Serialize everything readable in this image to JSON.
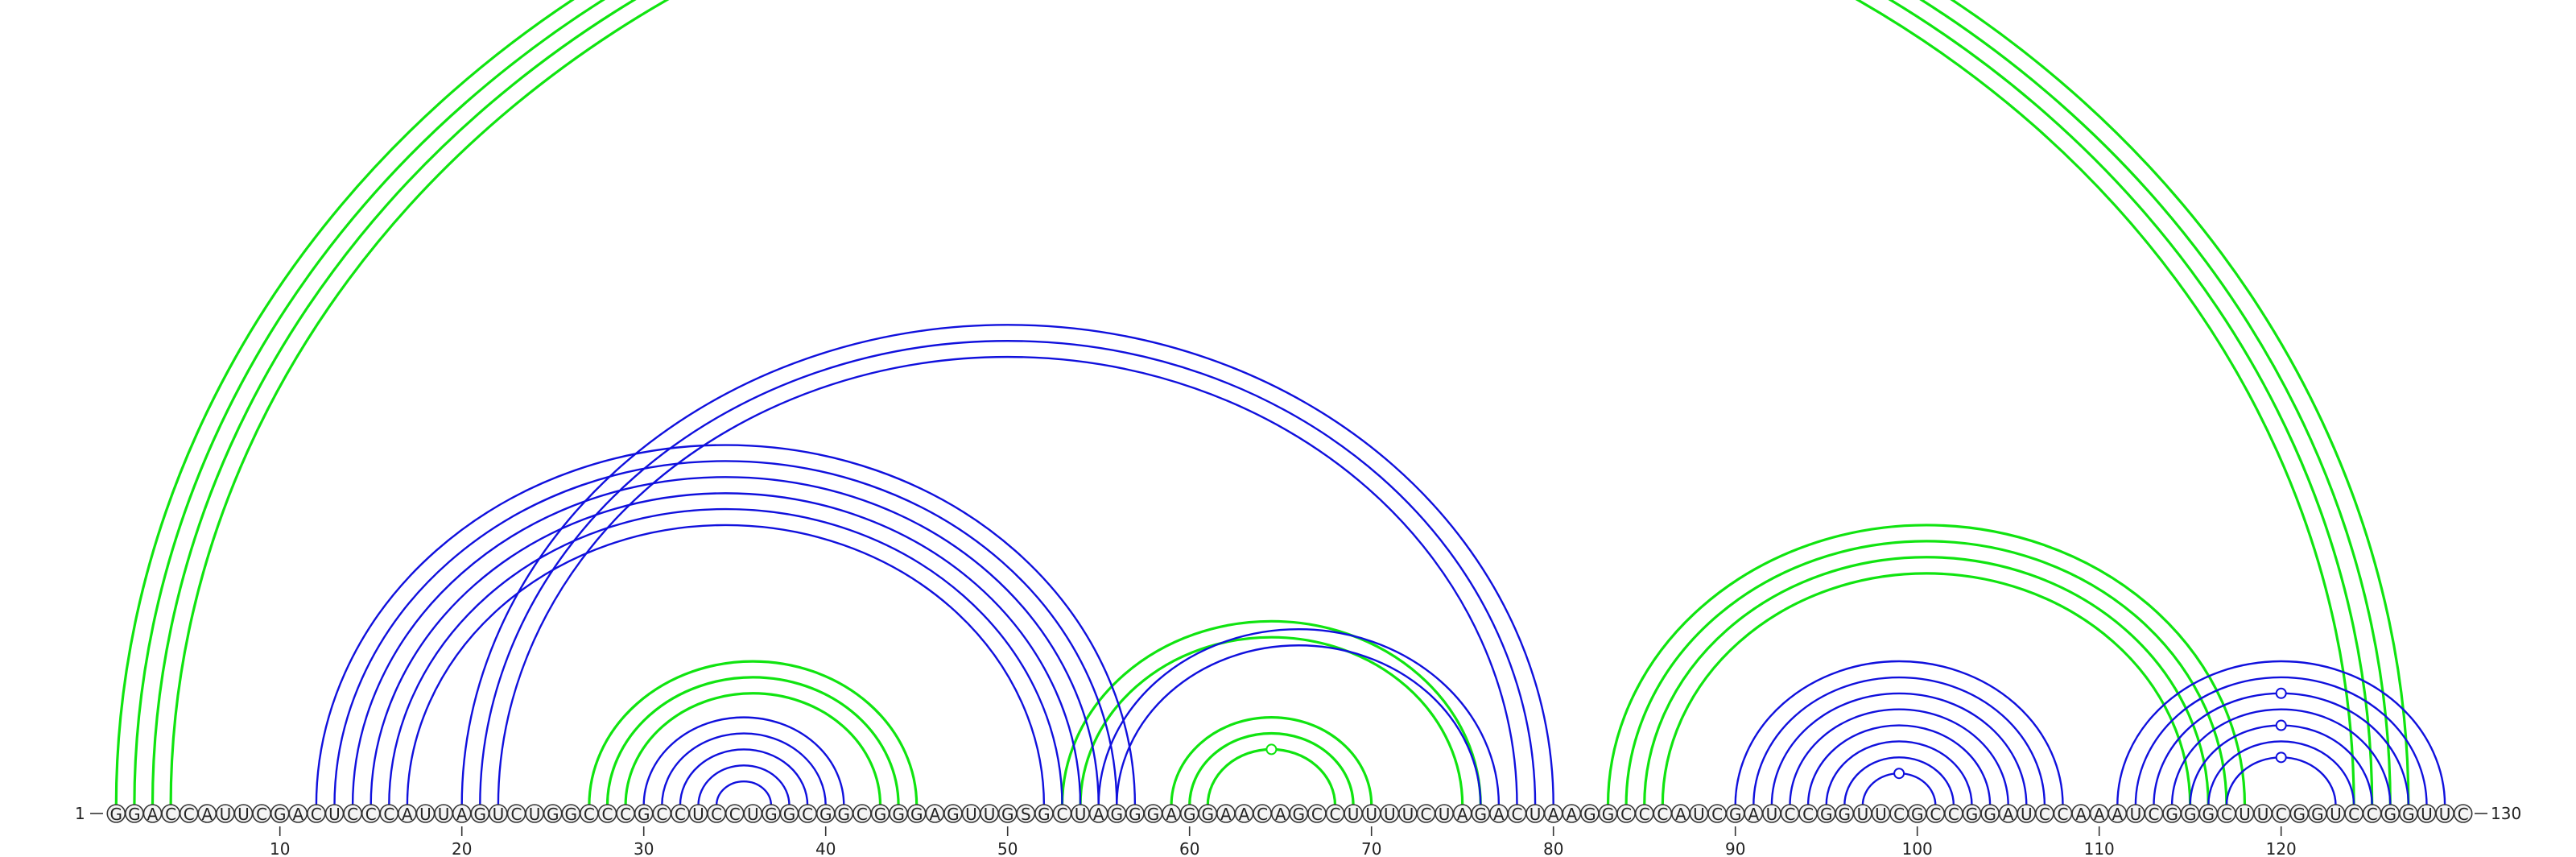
{
  "sequence": "GGACCAUUCGACUCCCAUUAGUCUGGCCCGCCUCCUGGCGGCGGGAGUUGSGCUAGGGAGGAACAGCCUUUUCUAGACUAAGGCCCAUCGAUCCGGUUCGCCGGAUCCAAAUCGGGCUUCGGUCCGGUUC",
  "start_label": "1",
  "end_label": "130",
  "ticks": [
    "10",
    "20",
    "30",
    "40",
    "50",
    "60",
    "70",
    "80",
    "90",
    "100",
    "110",
    "120"
  ],
  "colors": {
    "outer": "#10e410",
    "inner": "#1010dd"
  },
  "arcs": {
    "outer": [
      [
        1,
        127
      ],
      [
        2,
        126
      ],
      [
        3,
        125
      ],
      [
        4,
        124
      ],
      [
        27,
        45
      ],
      [
        28,
        44
      ],
      [
        29,
        43
      ],
      [
        53,
        76
      ],
      [
        54,
        75
      ],
      [
        59,
        70
      ],
      [
        60,
        69
      ],
      [
        61,
        68
      ],
      [
        83,
        118
      ],
      [
        84,
        117
      ],
      [
        85,
        116
      ],
      [
        86,
        115
      ]
    ],
    "inner": [
      [
        12,
        57
      ],
      [
        13,
        56
      ],
      [
        14,
        55
      ],
      [
        15,
        54
      ],
      [
        16,
        53
      ],
      [
        17,
        52
      ],
      [
        20,
        80
      ],
      [
        21,
        79
      ],
      [
        22,
        78
      ],
      [
        30,
        41
      ],
      [
        31,
        40
      ],
      [
        32,
        39
      ],
      [
        33,
        38
      ],
      [
        34,
        37
      ],
      [
        55,
        77
      ],
      [
        56,
        76
      ],
      [
        90,
        108
      ],
      [
        91,
        107
      ],
      [
        92,
        106
      ],
      [
        93,
        105
      ],
      [
        94,
        104
      ],
      [
        95,
        103
      ],
      [
        96,
        102
      ],
      [
        97,
        101
      ],
      [
        111,
        129
      ],
      [
        112,
        128
      ],
      [
        113,
        127
      ],
      [
        114,
        126
      ],
      [
        115,
        125
      ],
      [
        116,
        124
      ],
      [
        117,
        123
      ]
    ]
  },
  "markers": {
    "outer": [
      [
        4,
        124
      ],
      [
        61,
        68
      ]
    ],
    "inner": [
      [
        97,
        101
      ],
      [
        113,
        127
      ],
      [
        115,
        125
      ],
      [
        117,
        123
      ]
    ]
  }
}
